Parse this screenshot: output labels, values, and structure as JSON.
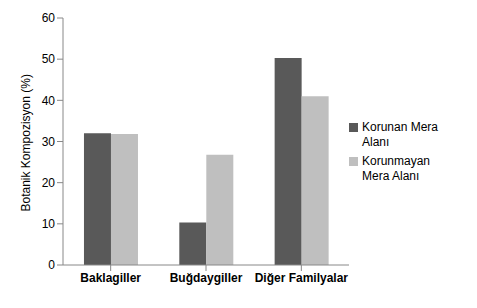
{
  "chart_data": {
    "type": "bar",
    "y_label": "Botanik Kompozisyon (%)",
    "categories": [
      "Baklagiller",
      "Buğdaygiller",
      "Diğer Familyalar"
    ],
    "series": [
      {
        "name": "Korunan Mera Alanı",
        "color": "#595959",
        "values": [
          32,
          10.3,
          50.3
        ]
      },
      {
        "name": "Korunmayan Mera Alanı",
        "color": "#bfbfbf",
        "values": [
          31.8,
          26.8,
          41
        ]
      }
    ],
    "ylim": [
      0,
      60
    ],
    "yticks": [
      0,
      10,
      20,
      30,
      40,
      50,
      60
    ],
    "grid": false,
    "legend": "right"
  }
}
